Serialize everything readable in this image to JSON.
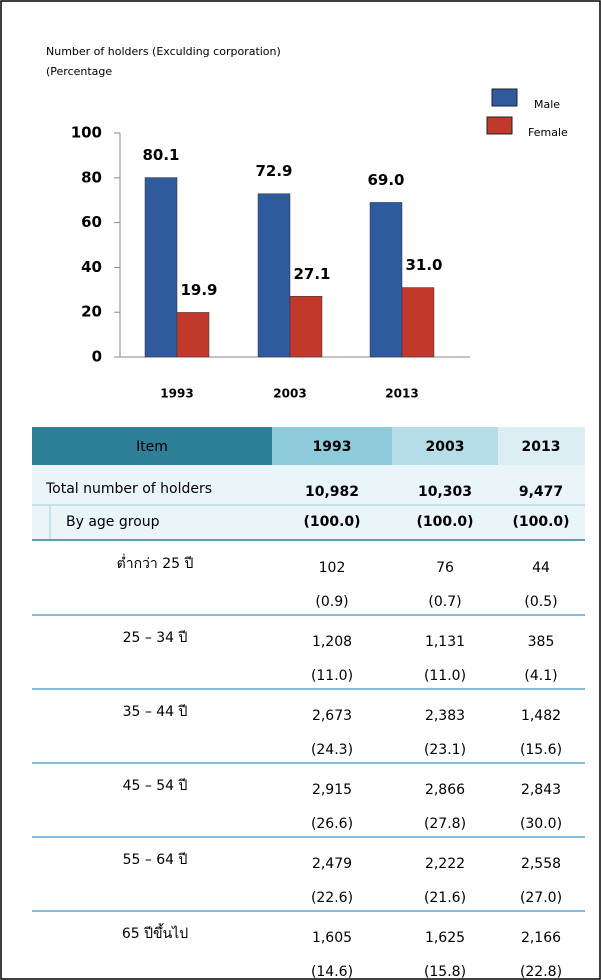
{
  "chart_data": {
    "type": "bar",
    "title": "Number of holders (Exculding corporation)",
    "subtitle": "(Percentage",
    "categories": [
      "1993",
      "2003",
      "2013"
    ],
    "series": [
      {
        "name": "Male",
        "color": "#2f5b9e",
        "values": [
          80.1,
          72.9,
          69.0
        ],
        "value_labels": [
          "80.1",
          "72.9",
          "69.0"
        ]
      },
      {
        "name": "Female",
        "color": "#c0392b",
        "values": [
          19.9,
          27.1,
          31.0
        ],
        "value_labels": [
          "19.9",
          "27.1",
          "31.0"
        ]
      }
    ],
    "ylim": [
      0,
      100
    ],
    "yticks": [
      0,
      20,
      40,
      60,
      80,
      100
    ],
    "legend": "top-right"
  },
  "table": {
    "header": [
      "Item",
      "1993",
      "2003",
      "2013"
    ],
    "total": {
      "label": "Total number of holders",
      "values": [
        "10,982",
        "10,303",
        "9,477"
      ]
    },
    "subtotal": {
      "label": "By age group",
      "values": [
        "(100.0)",
        "(100.0)",
        "(100.0)"
      ]
    },
    "rows": [
      {
        "label": "ต่ำกว่า 25 ปี",
        "counts": [
          "102",
          "76",
          "44"
        ],
        "shares": [
          "(0.9)",
          "(0.7)",
          "(0.5)"
        ]
      },
      {
        "label": "25 – 34  ปี",
        "counts": [
          "1,208",
          "1,131",
          "385"
        ],
        "shares": [
          "(11.0)",
          "(11.0)",
          "(4.1)"
        ]
      },
      {
        "label": "35 – 44  ปี",
        "counts": [
          "2,673",
          "2,383",
          "1,482"
        ],
        "shares": [
          "(24.3)",
          "(23.1)",
          "(15.6)"
        ]
      },
      {
        "label": "45 – 54  ปี",
        "counts": [
          "2,915",
          "2,866",
          "2,843"
        ],
        "shares": [
          "(26.6)",
          "(27.8)",
          "(30.0)"
        ]
      },
      {
        "label": "55 – 64  ปี",
        "counts": [
          "2,479",
          "2,222",
          "2,558"
        ],
        "shares": [
          "(22.6)",
          "(21.6)",
          "(27.0)"
        ]
      },
      {
        "label": "65  ปีขึ้นไป",
        "counts": [
          "1,605",
          "1,625",
          "2,166"
        ],
        "shares": [
          "(14.6)",
          "(15.8)",
          "(22.8)"
        ]
      }
    ]
  }
}
